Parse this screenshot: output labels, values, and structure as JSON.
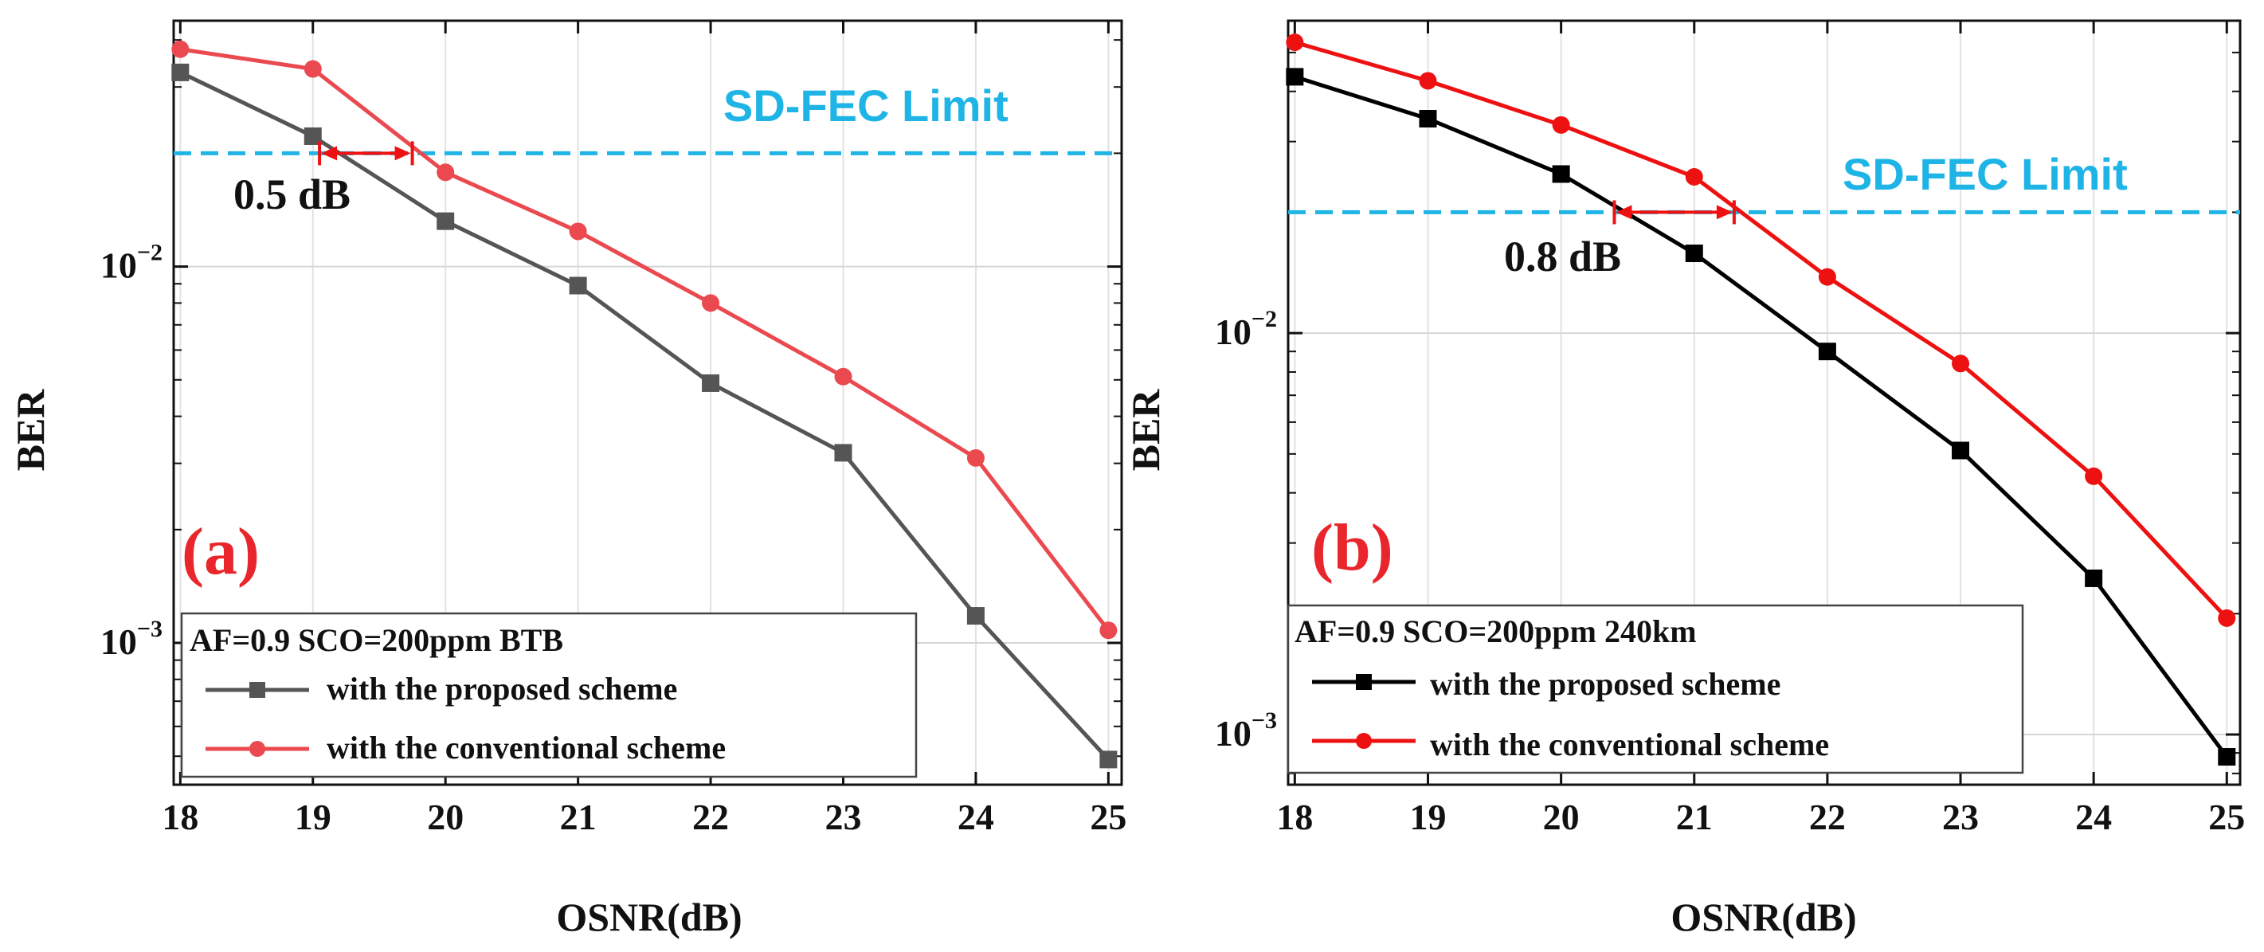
{
  "chart_data": [
    {
      "type": "line",
      "panel_label": "(a)",
      "xlabel": "OSNR(dB)",
      "ylabel": "BER",
      "yscale": "log",
      "x": [
        18,
        19,
        20,
        21,
        22,
        23,
        24,
        25
      ],
      "xlim": [
        17.95,
        25.1
      ],
      "ylim": [
        0.00042,
        0.045
      ],
      "x_tick_labels": [
        "18",
        "19",
        "20",
        "21",
        "22",
        "23",
        "24",
        "25"
      ],
      "y_tick_labels": [
        {
          "base": "10",
          "exp": "−2",
          "value": 0.01
        },
        {
          "base": "10",
          "exp": "−3",
          "value": 0.001
        }
      ],
      "legend_title": "AF=0.9 SCO=200ppm  BTB",
      "series": [
        {
          "name": "with the proposed scheme",
          "marker": "square",
          "color": "#555555",
          "values": [
            0.0328,
            0.0222,
            0.0132,
            0.0089,
            0.0049,
            0.0032,
            0.00118,
            0.00049
          ]
        },
        {
          "name": "with the conventional scheme",
          "marker": "circle",
          "color": "#ea4a4f",
          "values": [
            0.0378,
            0.0335,
            0.0178,
            0.0124,
            0.008,
            0.0051,
            0.0031,
            0.00108
          ]
        }
      ],
      "threshold": {
        "label": "SD-FEC Limit",
        "value": 0.02,
        "color": "#1fb4e6"
      },
      "annotation": {
        "text": "0.5 dB",
        "x_from": 19.05,
        "x_to": 19.75
      },
      "grid": true
    },
    {
      "type": "line",
      "panel_label": "(b)",
      "xlabel": "OSNR(dB)",
      "ylabel": "BER",
      "yscale": "log",
      "x": [
        18,
        19,
        20,
        21,
        22,
        23,
        24,
        25
      ],
      "xlim": [
        17.95,
        25.1
      ],
      "ylim": [
        0.00075,
        0.06
      ],
      "x_tick_labels": [
        "18",
        "19",
        "20",
        "21",
        "22",
        "23",
        "24",
        "25"
      ],
      "y_tick_labels": [
        {
          "base": "10",
          "exp": "−2",
          "value": 0.01
        },
        {
          "base": "10",
          "exp": "−3",
          "value": 0.001
        }
      ],
      "legend_title": "AF=0.9 SCO=200ppm  240km",
      "series": [
        {
          "name": "with the proposed scheme",
          "marker": "square",
          "color": "#000000",
          "values": [
            0.0435,
            0.0342,
            0.0249,
            0.0158,
            0.009,
            0.0051,
            0.00245,
            0.00088
          ]
        },
        {
          "name": "with the conventional scheme",
          "marker": "circle",
          "color": "#ee1111",
          "values": [
            0.053,
            0.0425,
            0.033,
            0.0245,
            0.0138,
            0.0084,
            0.0044,
            0.00195
          ]
        }
      ],
      "threshold": {
        "label": "SD-FEC Limit",
        "value": 0.02,
        "color": "#1fb4e6"
      },
      "annotation": {
        "text": "0.8 dB",
        "x_from": 20.4,
        "x_to": 21.3
      },
      "grid": true
    }
  ]
}
